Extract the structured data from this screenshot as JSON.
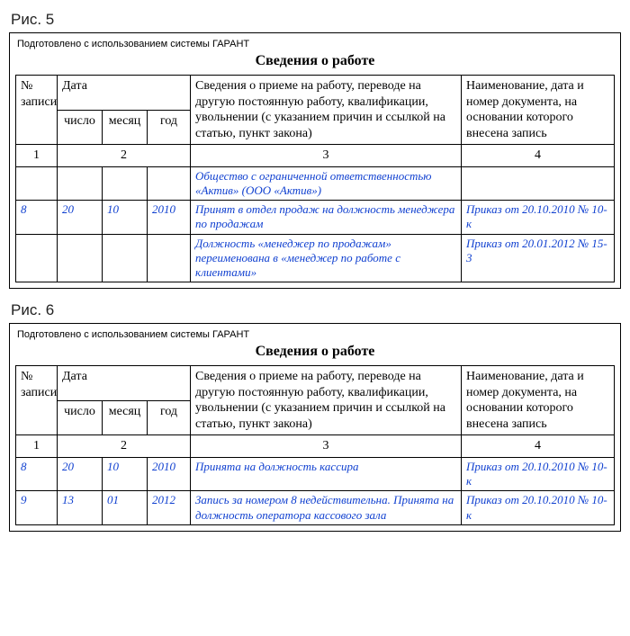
{
  "common": {
    "note": "Подготовлено с использованием системы ГАРАНТ",
    "title": "Сведения о работе",
    "headers": {
      "num": "№ записи",
      "date": "Дата",
      "day": "число",
      "month": "месяц",
      "year": "год",
      "info": "Сведения о приеме на работу, переводе на другую постоянную работу, квалификации, увольнении (с указанием причин и ссылкой на статью, пункт закона)",
      "doc": "Наименование, дата и номер документа, на основании которого внесена запись",
      "c1": "1",
      "c2": "2",
      "c3": "3",
      "c4": "4"
    }
  },
  "fig5": {
    "label": "Рис. 5",
    "rows": [
      {
        "num": "",
        "d": "",
        "m": "",
        "y": "",
        "info": "Общество с ограниченной ответственностью «Актив» (ООО «Актив»)",
        "doc": ""
      },
      {
        "num": "8",
        "d": "20",
        "m": "10",
        "y": "2010",
        "info": "Принят в отдел продаж на должность менеджера по продажам",
        "doc": "Приказ от 20.10.2010 № 10-к"
      },
      {
        "num": "",
        "d": "",
        "m": "",
        "y": "",
        "info": "Должность «менеджер по продажам» переименована в «менеджер по работе с клиентами»",
        "doc": "Приказ от 20.01.2012 № 15-3"
      }
    ]
  },
  "fig6": {
    "label": "Рис. 6",
    "rows": [
      {
        "num": "8",
        "d": "20",
        "m": "10",
        "y": "2010",
        "info": "Принята на должность кассира",
        "doc": "Приказ от 20.10.2010 № 10-к"
      },
      {
        "num": "9",
        "d": "13",
        "m": "01",
        "y": "2012",
        "info": "Запись за номером 8 недействительна. Принята на должность оператора кассового зала",
        "doc": "Приказ от 20.10.2010 № 10-к"
      }
    ]
  }
}
